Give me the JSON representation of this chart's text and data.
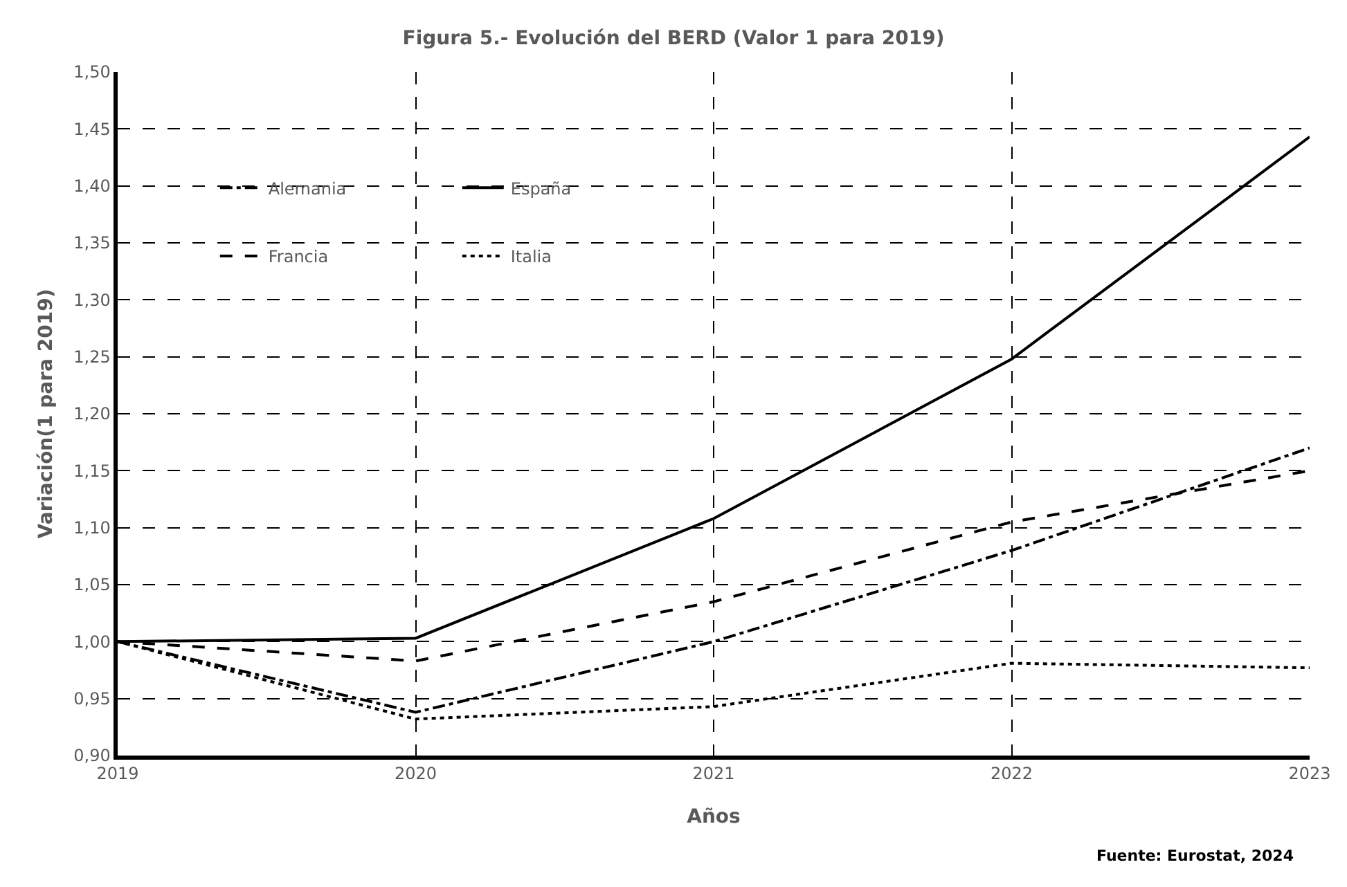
{
  "chart_data": {
    "type": "line",
    "title": "Figura 5.- Evolución del BERD (Valor 1 para 2019)",
    "xlabel": "Años",
    "ylabel": "Variación(1 para 2019)",
    "x": [
      2019,
      2020,
      2021,
      2022,
      2023
    ],
    "series": [
      {
        "name": "Alemania",
        "color": "#000000",
        "line_style": "dashdot",
        "values": [
          1.0,
          0.938,
          1.0,
          1.08,
          1.17
        ]
      },
      {
        "name": "España",
        "color": "#000000",
        "line_style": "solid",
        "values": [
          1.0,
          1.003,
          1.108,
          1.248,
          1.443
        ]
      },
      {
        "name": "Francia",
        "color": "#000000",
        "line_style": "dashed",
        "values": [
          1.0,
          0.983,
          1.035,
          1.105,
          1.15
        ]
      },
      {
        "name": "Italia",
        "color": "#000000",
        "line_style": "dotted",
        "values": [
          1.0,
          0.932,
          0.943,
          0.981,
          0.977
        ]
      }
    ],
    "xlim": [
      2019,
      2023
    ],
    "xticks": [
      2019,
      2020,
      2021,
      2022,
      2023
    ],
    "ylim": [
      0.9,
      1.5
    ],
    "yticks": [
      {
        "value": 0.9,
        "label": "0,90"
      },
      {
        "value": 0.95,
        "label": "0,95"
      },
      {
        "value": 1.0,
        "label": "1,00"
      },
      {
        "value": 1.05,
        "label": "1,05"
      },
      {
        "value": 1.1,
        "label": "1,10"
      },
      {
        "value": 1.15,
        "label": "1,15"
      },
      {
        "value": 1.2,
        "label": "1,20"
      },
      {
        "value": 1.25,
        "label": "1,25"
      },
      {
        "value": 1.3,
        "label": "1,30"
      },
      {
        "value": 1.35,
        "label": "1,35"
      },
      {
        "value": 1.4,
        "label": "1,40"
      },
      {
        "value": 1.45,
        "label": "1,45"
      },
      {
        "value": 1.5,
        "label": "1,50"
      }
    ],
    "grid": true,
    "legend": "top left",
    "marker": "none",
    "annotations": [
      "Fuente: Eurostat, 2024"
    ]
  }
}
